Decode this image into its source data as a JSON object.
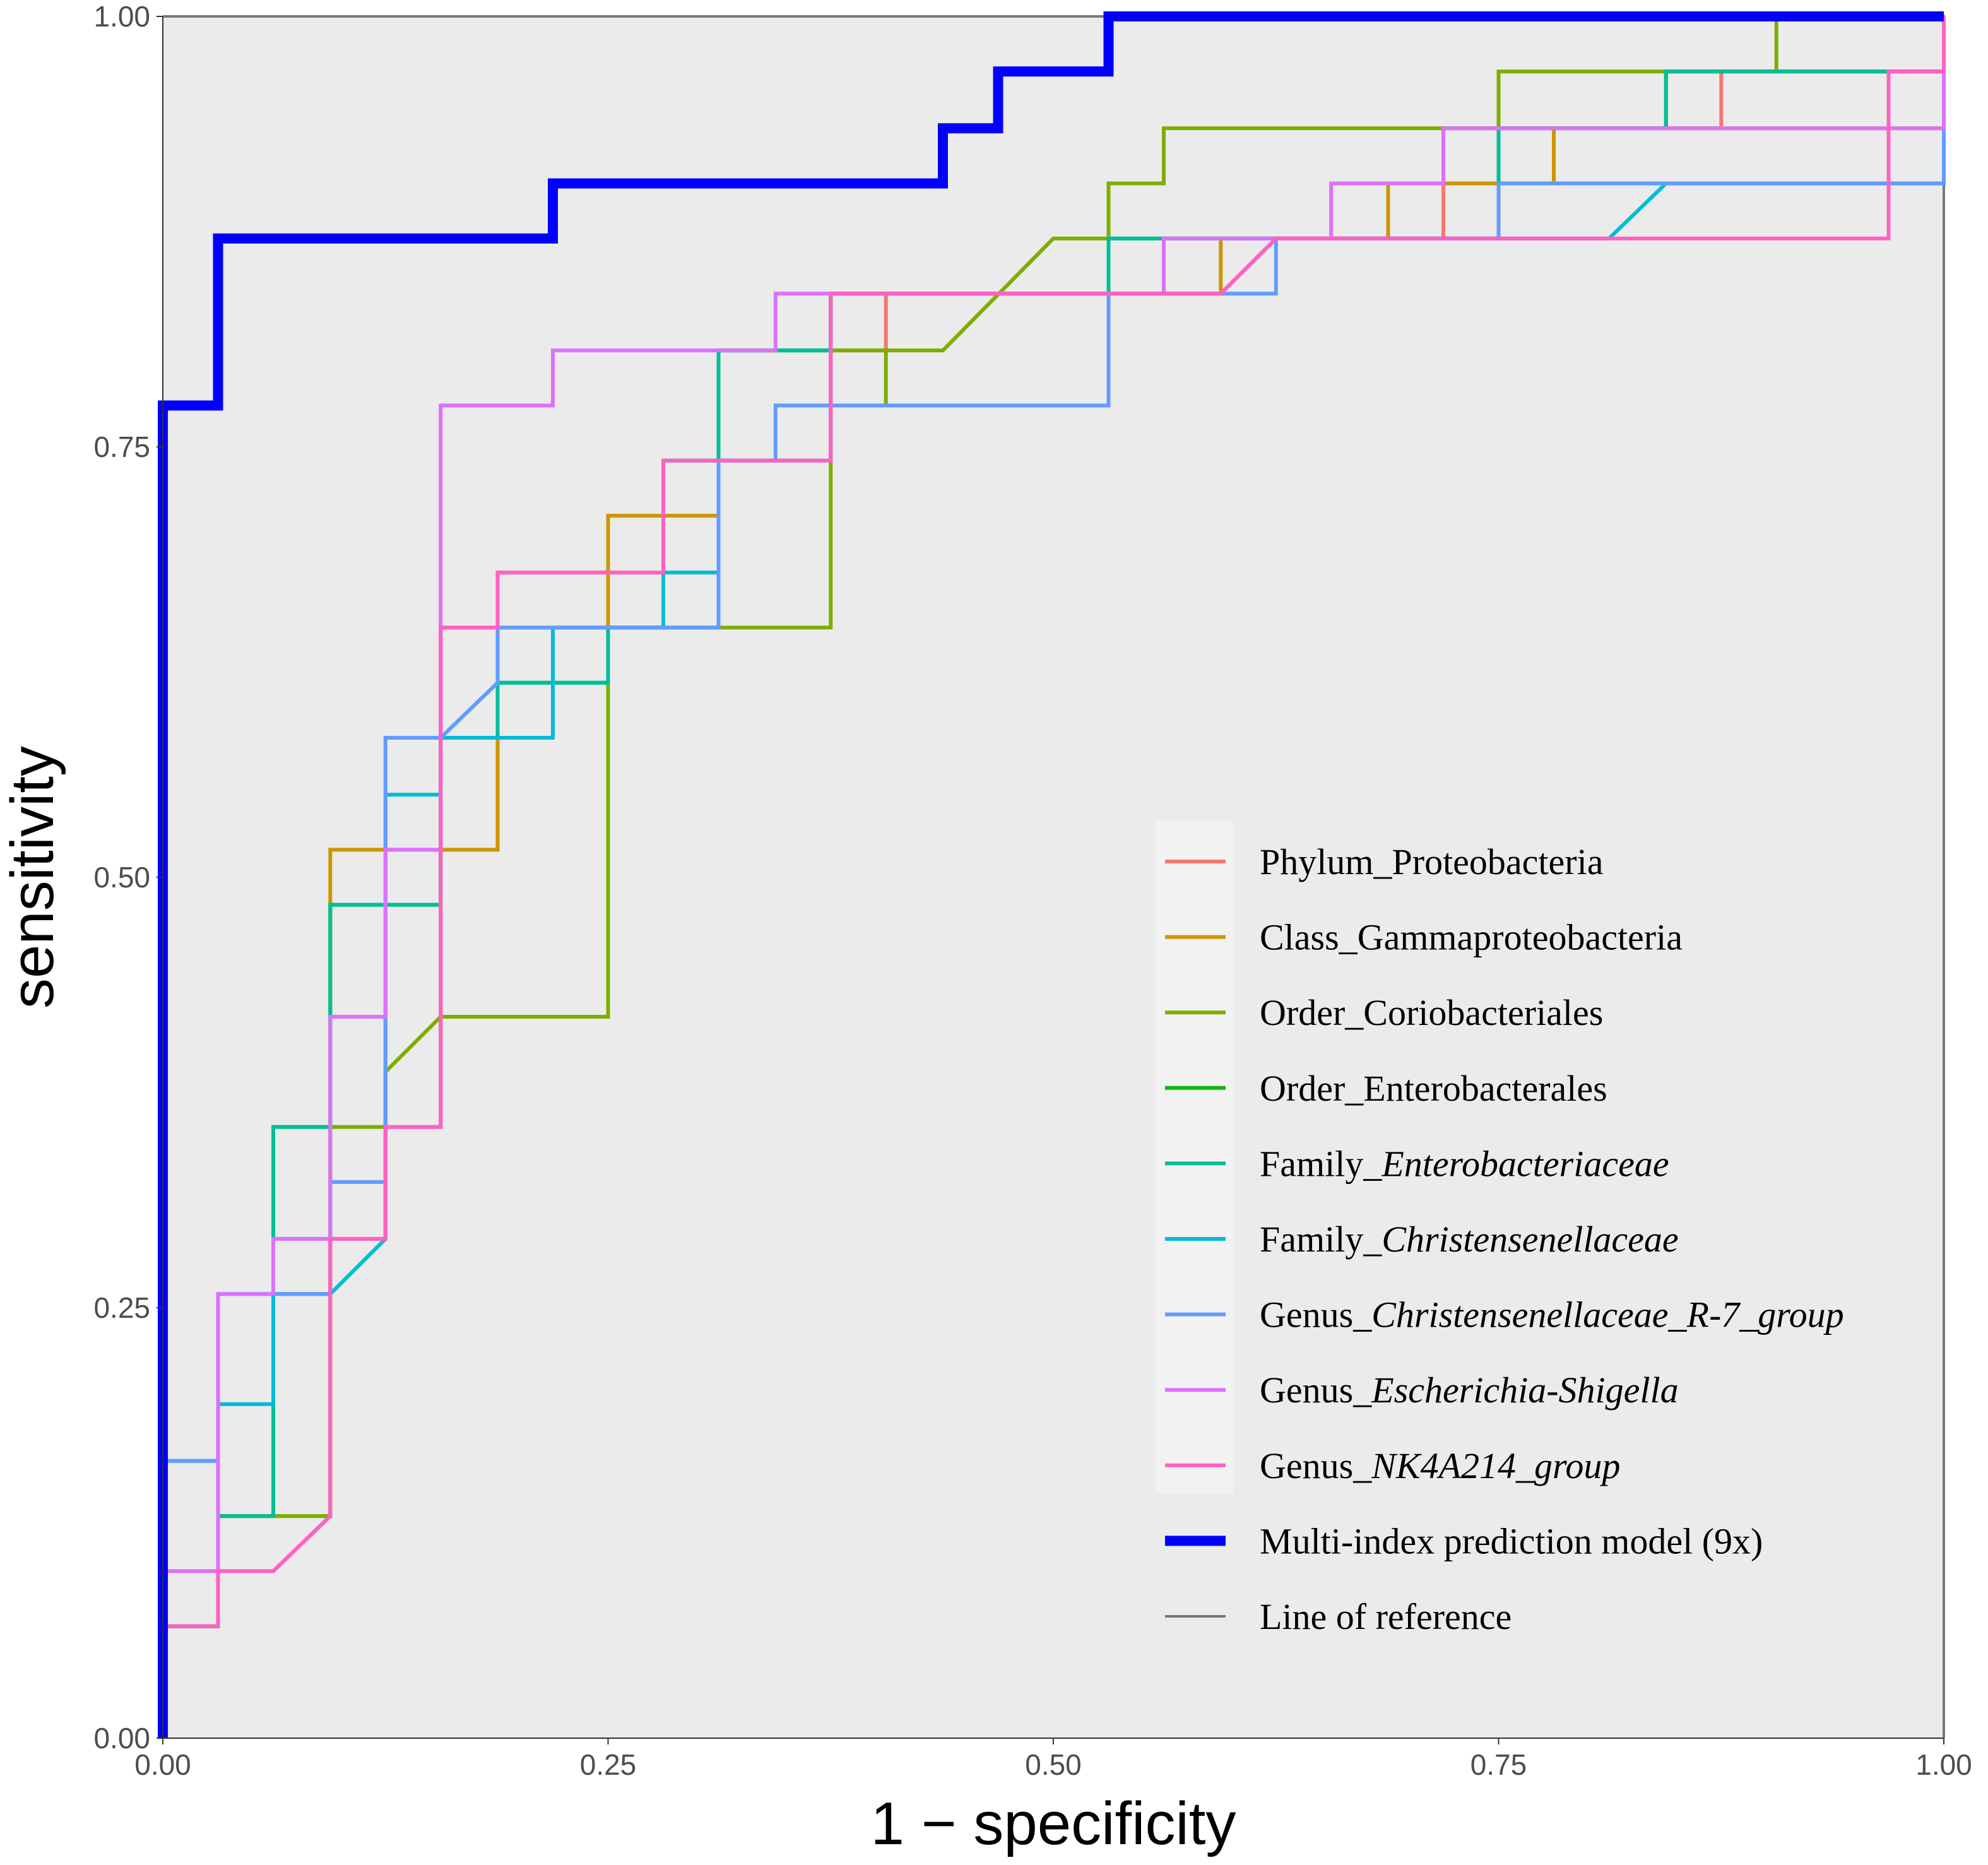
{
  "chart_data": {
    "type": "line",
    "subtype": "ROC step curves",
    "xlabel": "1 − specificity",
    "ylabel": "sensitivity",
    "xlim": [
      0,
      1
    ],
    "ylim": [
      0,
      1
    ],
    "x_ticks": [
      "0.00",
      "0.25",
      "0.50",
      "0.75",
      "1.00"
    ],
    "y_ticks": [
      "0.00",
      "0.25",
      "0.50",
      "0.75",
      "1.00"
    ],
    "grid": false,
    "legend_position": "bottom-right inside",
    "series": [
      {
        "name": "Phylum_Proteobacteria",
        "label_prefix": "Phylum_",
        "label_italic": "",
        "label_plain": "Proteobacteria",
        "color": "#F8766D",
        "width": 3,
        "points": [
          [
            0,
            0
          ],
          [
            0,
            0.065
          ],
          [
            0.031,
            0.065
          ],
          [
            0.031,
            0.097
          ],
          [
            0.062,
            0.097
          ],
          [
            0.094,
            0.129
          ],
          [
            0.094,
            0.29
          ],
          [
            0.125,
            0.29
          ],
          [
            0.125,
            0.355
          ],
          [
            0.156,
            0.355
          ],
          [
            0.156,
            0.645
          ],
          [
            0.188,
            0.645
          ],
          [
            0.188,
            0.677
          ],
          [
            0.25,
            0.677
          ],
          [
            0.281,
            0.677
          ],
          [
            0.281,
            0.742
          ],
          [
            0.375,
            0.742
          ],
          [
            0.375,
            0.806
          ],
          [
            0.406,
            0.806
          ],
          [
            0.406,
            0.839
          ],
          [
            0.531,
            0.839
          ],
          [
            0.594,
            0.839
          ],
          [
            0.625,
            0.871
          ],
          [
            0.719,
            0.871
          ],
          [
            0.719,
            0.935
          ],
          [
            0.844,
            0.935
          ],
          [
            0.844,
            0.935
          ],
          [
            0.875,
            0.935
          ],
          [
            0.875,
            0.968
          ],
          [
            0.969,
            0.968
          ],
          [
            1,
            0.968
          ],
          [
            1,
            1
          ]
        ]
      },
      {
        "name": "Class_Gammaproteobacteria",
        "label_prefix": "Class_",
        "label_italic": "",
        "label_plain": "Gammaproteobacteria",
        "color": "#CD9600",
        "width": 3,
        "points": [
          [
            0,
            0
          ],
          [
            0,
            0.065
          ],
          [
            0.031,
            0.065
          ],
          [
            0.031,
            0.129
          ],
          [
            0.094,
            0.129
          ],
          [
            0.094,
            0.516
          ],
          [
            0.188,
            0.516
          ],
          [
            0.188,
            0.645
          ],
          [
            0.25,
            0.645
          ],
          [
            0.25,
            0.71
          ],
          [
            0.312,
            0.71
          ],
          [
            0.312,
            0.806
          ],
          [
            0.375,
            0.806
          ],
          [
            0.375,
            0.839
          ],
          [
            0.531,
            0.839
          ],
          [
            0.594,
            0.839
          ],
          [
            0.594,
            0.871
          ],
          [
            0.688,
            0.871
          ],
          [
            0.688,
            0.903
          ],
          [
            0.781,
            0.903
          ],
          [
            0.781,
            0.935
          ],
          [
            1,
            0.935
          ],
          [
            1,
            1
          ]
        ]
      },
      {
        "name": "Order_Coriobacteriales",
        "label_prefix": "Order_",
        "label_italic": "",
        "label_plain": "Coriobacteriales",
        "color": "#7CAE00",
        "width": 3,
        "points": [
          [
            0,
            0
          ],
          [
            0,
            0.065
          ],
          [
            0.031,
            0.065
          ],
          [
            0.031,
            0.129
          ],
          [
            0.094,
            0.129
          ],
          [
            0.094,
            0.355
          ],
          [
            0.125,
            0.355
          ],
          [
            0.125,
            0.387
          ],
          [
            0.156,
            0.419
          ],
          [
            0.25,
            0.419
          ],
          [
            0.25,
            0.645
          ],
          [
            0.375,
            0.645
          ],
          [
            0.375,
            0.806
          ],
          [
            0.406,
            0.806
          ],
          [
            0.406,
            0.774
          ],
          [
            0.406,
            0.806
          ],
          [
            0.438,
            0.806
          ],
          [
            0.5,
            0.871
          ],
          [
            0.531,
            0.871
          ],
          [
            0.531,
            0.903
          ],
          [
            0.562,
            0.903
          ],
          [
            0.562,
            0.935
          ],
          [
            0.75,
            0.935
          ],
          [
            0.75,
            0.968
          ],
          [
            0.906,
            0.968
          ],
          [
            0.906,
            1
          ],
          [
            1,
            1
          ]
        ]
      },
      {
        "name": "Order_Enterobacterales",
        "label_prefix": "Order_",
        "label_italic": "",
        "label_plain": "Enterobacterales",
        "color": "#0CB702",
        "width": 3,
        "points": [
          [
            0,
            0
          ],
          [
            0,
            0.065
          ],
          [
            0.031,
            0.065
          ],
          [
            0.031,
            0.129
          ],
          [
            0.062,
            0.129
          ],
          [
            0.062,
            0.355
          ],
          [
            0.094,
            0.355
          ],
          [
            0.094,
            0.484
          ],
          [
            0.156,
            0.484
          ],
          [
            0.156,
            0.581
          ],
          [
            0.188,
            0.581
          ],
          [
            0.188,
            0.613
          ],
          [
            0.25,
            0.613
          ],
          [
            0.25,
            0.645
          ],
          [
            0.281,
            0.645
          ],
          [
            0.281,
            0.742
          ],
          [
            0.312,
            0.742
          ],
          [
            0.312,
            0.806
          ],
          [
            0.375,
            0.806
          ],
          [
            0.375,
            0.839
          ],
          [
            0.531,
            0.839
          ],
          [
            0.531,
            0.871
          ],
          [
            0.75,
            0.871
          ],
          [
            0.75,
            0.935
          ],
          [
            0.844,
            0.935
          ],
          [
            0.844,
            0.968
          ],
          [
            0.969,
            0.968
          ],
          [
            1,
            0.968
          ],
          [
            1,
            1
          ]
        ]
      },
      {
        "name": "Family_Enterobacteriaceae",
        "label_prefix": "Family_",
        "label_italic": "Enterobacteriaceae",
        "label_plain": "",
        "color": "#00BE99",
        "width": 3,
        "points": [
          [
            0,
            0
          ],
          [
            0,
            0.065
          ],
          [
            0.031,
            0.065
          ],
          [
            0.031,
            0.129
          ],
          [
            0.062,
            0.129
          ],
          [
            0.062,
            0.355
          ],
          [
            0.094,
            0.355
          ],
          [
            0.094,
            0.484
          ],
          [
            0.156,
            0.484
          ],
          [
            0.156,
            0.581
          ],
          [
            0.188,
            0.581
          ],
          [
            0.188,
            0.613
          ],
          [
            0.25,
            0.613
          ],
          [
            0.25,
            0.645
          ],
          [
            0.281,
            0.645
          ],
          [
            0.281,
            0.742
          ],
          [
            0.312,
            0.742
          ],
          [
            0.312,
            0.806
          ],
          [
            0.375,
            0.806
          ],
          [
            0.375,
            0.839
          ],
          [
            0.531,
            0.839
          ],
          [
            0.531,
            0.871
          ],
          [
            0.75,
            0.871
          ],
          [
            0.75,
            0.935
          ],
          [
            0.844,
            0.935
          ],
          [
            0.844,
            0.968
          ],
          [
            0.969,
            0.968
          ],
          [
            1,
            0.968
          ],
          [
            1,
            1
          ]
        ]
      },
      {
        "name": "Family_Christensenellaceae",
        "label_prefix": "Family_",
        "label_italic": "Christensenellaceae",
        "label_plain": "",
        "color": "#00BBDA",
        "width": 3,
        "points": [
          [
            0,
            0
          ],
          [
            0,
            0.161
          ],
          [
            0.031,
            0.161
          ],
          [
            0.031,
            0.194
          ],
          [
            0.062,
            0.194
          ],
          [
            0.062,
            0.258
          ],
          [
            0.094,
            0.258
          ],
          [
            0.125,
            0.29
          ],
          [
            0.125,
            0.548
          ],
          [
            0.156,
            0.548
          ],
          [
            0.156,
            0.581
          ],
          [
            0.219,
            0.581
          ],
          [
            0.219,
            0.645
          ],
          [
            0.25,
            0.645
          ],
          [
            0.281,
            0.645
          ],
          [
            0.281,
            0.677
          ],
          [
            0.312,
            0.677
          ],
          [
            0.312,
            0.742
          ],
          [
            0.375,
            0.742
          ],
          [
            0.375,
            0.839
          ],
          [
            0.531,
            0.839
          ],
          [
            0.562,
            0.839
          ],
          [
            0.562,
            0.871
          ],
          [
            0.812,
            0.871
          ],
          [
            0.844,
            0.903
          ],
          [
            0.969,
            0.903
          ],
          [
            1,
            0.903
          ],
          [
            1,
            1
          ]
        ]
      },
      {
        "name": "Genus_Christensenellaceae_R-7_group",
        "label_prefix": "Genus_",
        "label_italic": "Christensenellaceae_R-7_group",
        "label_plain": "",
        "color": "#619CFF",
        "width": 3,
        "points": [
          [
            0,
            0
          ],
          [
            0,
            0.161
          ],
          [
            0.031,
            0.161
          ],
          [
            0.031,
            0.258
          ],
          [
            0.062,
            0.258
          ],
          [
            0.094,
            0.258
          ],
          [
            0.094,
            0.323
          ],
          [
            0.125,
            0.323
          ],
          [
            0.125,
            0.581
          ],
          [
            0.156,
            0.581
          ],
          [
            0.188,
            0.613
          ],
          [
            0.188,
            0.645
          ],
          [
            0.25,
            0.645
          ],
          [
            0.312,
            0.645
          ],
          [
            0.312,
            0.742
          ],
          [
            0.344,
            0.742
          ],
          [
            0.344,
            0.774
          ],
          [
            0.531,
            0.774
          ],
          [
            0.531,
            0.839
          ],
          [
            0.594,
            0.839
          ],
          [
            0.625,
            0.839
          ],
          [
            0.625,
            0.871
          ],
          [
            0.75,
            0.871
          ],
          [
            0.75,
            0.903
          ],
          [
            0.969,
            0.903
          ],
          [
            1,
            0.903
          ],
          [
            1,
            1
          ]
        ]
      },
      {
        "name": "Genus_Escherichia-Shigella",
        "label_prefix": "Genus_",
        "label_italic": "Escherichia-Shigella",
        "label_plain": "",
        "color": "#DB72FB",
        "width": 3,
        "points": [
          [
            0,
            0
          ],
          [
            0,
            0.097
          ],
          [
            0.031,
            0.097
          ],
          [
            0.031,
            0.258
          ],
          [
            0.062,
            0.258
          ],
          [
            0.062,
            0.29
          ],
          [
            0.094,
            0.29
          ],
          [
            0.094,
            0.419
          ],
          [
            0.125,
            0.419
          ],
          [
            0.125,
            0.516
          ],
          [
            0.156,
            0.516
          ],
          [
            0.156,
            0.774
          ],
          [
            0.219,
            0.774
          ],
          [
            0.219,
            0.806
          ],
          [
            0.344,
            0.806
          ],
          [
            0.344,
            0.839
          ],
          [
            0.531,
            0.839
          ],
          [
            0.562,
            0.839
          ],
          [
            0.562,
            0.871
          ],
          [
            0.656,
            0.871
          ],
          [
            0.656,
            0.903
          ],
          [
            0.719,
            0.903
          ],
          [
            0.719,
            0.935
          ],
          [
            1,
            0.935
          ],
          [
            1,
            1
          ]
        ]
      },
      {
        "name": "Genus_NK4A214_group",
        "label_prefix": "Genus_",
        "label_italic": "NK4A214_group",
        "label_plain": "",
        "color": "#FF61C3",
        "width": 3,
        "points": [
          [
            0,
            0
          ],
          [
            0,
            0.065
          ],
          [
            0.031,
            0.065
          ],
          [
            0.031,
            0.097
          ],
          [
            0.062,
            0.097
          ],
          [
            0.094,
            0.129
          ],
          [
            0.094,
            0.29
          ],
          [
            0.125,
            0.29
          ],
          [
            0.125,
            0.355
          ],
          [
            0.156,
            0.355
          ],
          [
            0.156,
            0.645
          ],
          [
            0.188,
            0.645
          ],
          [
            0.188,
            0.677
          ],
          [
            0.281,
            0.677
          ],
          [
            0.281,
            0.742
          ],
          [
            0.375,
            0.742
          ],
          [
            0.375,
            0.839
          ],
          [
            0.594,
            0.839
          ],
          [
            0.625,
            0.871
          ],
          [
            0.969,
            0.871
          ],
          [
            0.969,
            0.968
          ],
          [
            1,
            0.968
          ],
          [
            1,
            1
          ]
        ]
      },
      {
        "name": "Multi-index prediction model (9x)",
        "label_prefix": "",
        "label_italic": "",
        "label_plain": "Multi-index prediction model (9x)",
        "color": "#0000FF",
        "width": 8,
        "points": [
          [
            0,
            0
          ],
          [
            0,
            0.774
          ],
          [
            0.031,
            0.774
          ],
          [
            0.031,
            0.871
          ],
          [
            0.219,
            0.871
          ],
          [
            0.219,
            0.903
          ],
          [
            0.438,
            0.903
          ],
          [
            0.438,
            0.935
          ],
          [
            0.469,
            0.935
          ],
          [
            0.469,
            0.968
          ],
          [
            0.531,
            0.968
          ],
          [
            0.531,
            1
          ],
          [
            1,
            1
          ]
        ]
      },
      {
        "name": "Line of reference",
        "label_prefix": "",
        "label_italic": "",
        "label_plain": "Line of reference",
        "color": "#777777",
        "width": 2,
        "points": [
          [
            0,
            1
          ],
          [
            1,
            1
          ],
          [
            1,
            0
          ]
        ]
      }
    ]
  }
}
